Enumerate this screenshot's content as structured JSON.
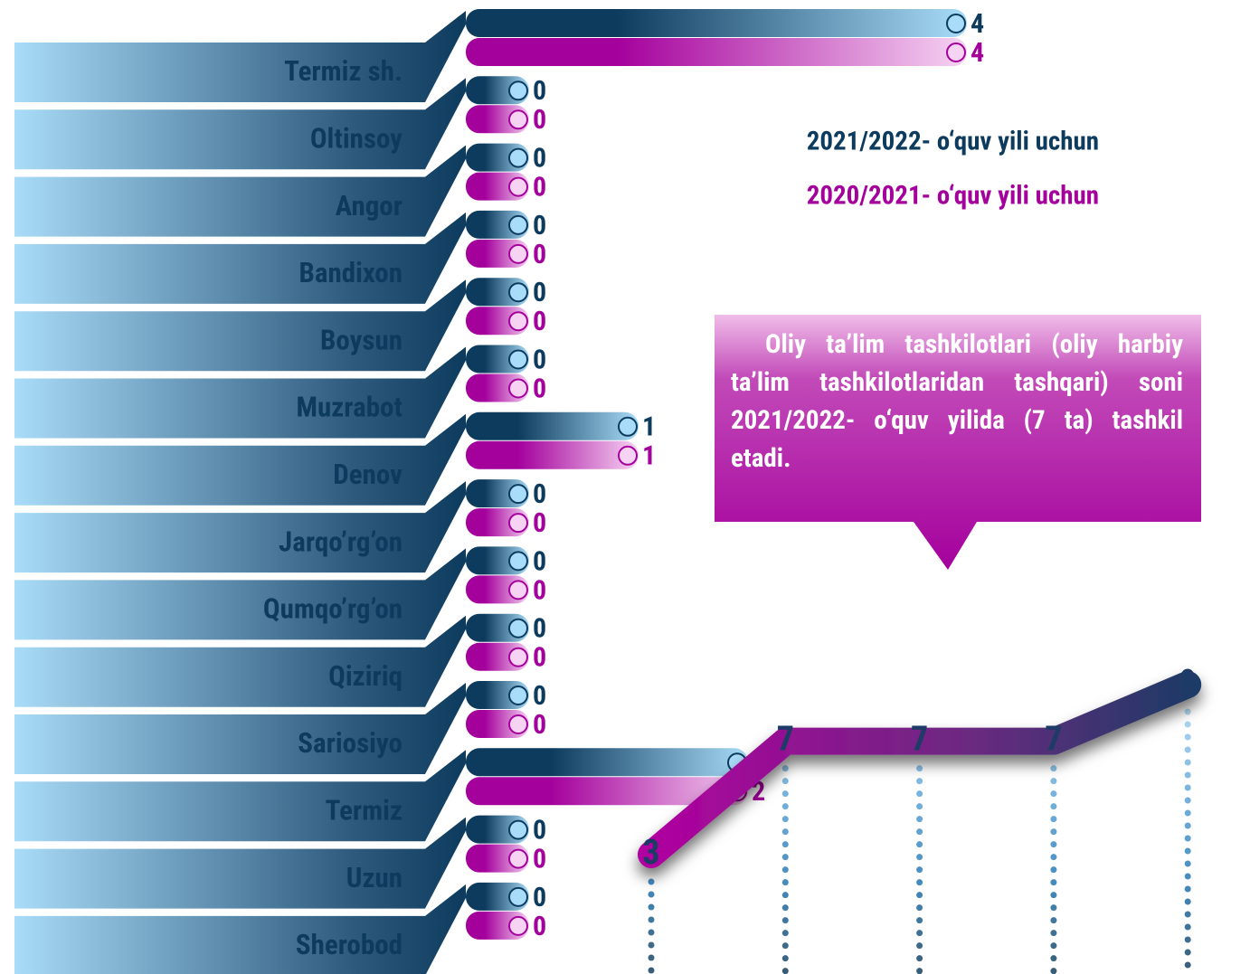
{
  "chart_data": [
    {
      "type": "hbar",
      "categories": [
        "Termiz sh.",
        "Oltinsoy",
        "Angor",
        "Bandixon",
        "Boysun",
        "Muzrabot",
        "Denov",
        "Jarqo’rg’on",
        "Qumqo’rg’on",
        "Qiziriq",
        "Sariosiyo",
        "Termiz",
        "Uzun",
        "Sherobod"
      ],
      "series": [
        {
          "name": "2021/2022- o‘quv yili uchun",
          "color": "#0d3b5e",
          "values": [
            4,
            0,
            0,
            0,
            0,
            0,
            1,
            0,
            0,
            0,
            0,
            2,
            0,
            0
          ]
        },
        {
          "name": "2020/2021- o‘quv yili uchun",
          "color": "#a4009c",
          "values": [
            4,
            0,
            0,
            0,
            0,
            0,
            1,
            0,
            0,
            0,
            0,
            2,
            0,
            0
          ]
        }
      ]
    },
    {
      "type": "line",
      "values": [
        3,
        7,
        7,
        7,
        9
      ],
      "color": "#1e3a66"
    }
  ],
  "callout": "Oliy ta’lim tashkilotlari (oliy harbiy ta’lim tashkilotlaridan tashqari) soni 2021/2022- o‘quv yilida (7 ta) tashkil etadi."
}
